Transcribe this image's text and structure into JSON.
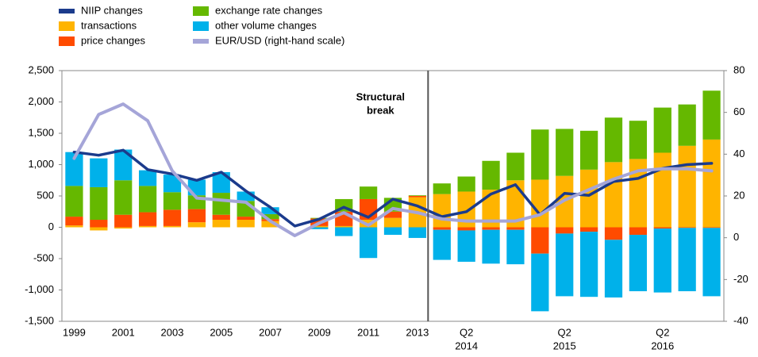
{
  "chart_data": {
    "type": "bar",
    "categories": [
      "1999",
      null,
      "2001",
      null,
      "2003",
      null,
      "2005",
      null,
      "2007",
      null,
      "2009",
      null,
      "2011",
      null,
      "2013",
      null,
      [
        "Q2",
        "2014"
      ],
      null,
      null,
      null,
      [
        "Q2",
        "2015"
      ],
      null,
      null,
      null,
      [
        "Q2",
        "2016"
      ],
      null,
      null
    ],
    "series": [
      {
        "name": "NIIP changes",
        "type": "line",
        "color": "#1b3b8c",
        "values": [
          1200,
          1150,
          1230,
          920,
          850,
          750,
          880,
          580,
          320,
          20,
          130,
          320,
          160,
          450,
          340,
          170,
          250,
          530,
          680,
          200,
          540,
          510,
          730,
          780,
          940,
          1000,
          1020
        ]
      },
      {
        "name": "transactions",
        "color": "#ffb400",
        "values": [
          30,
          -50,
          -20,
          20,
          20,
          80,
          120,
          120,
          100,
          0,
          20,
          20,
          120,
          150,
          480,
          530,
          570,
          600,
          750,
          760,
          820,
          920,
          1040,
          1090,
          1190,
          1300,
          1400
        ]
      },
      {
        "name": "price changes",
        "color": "#ff4b00",
        "values": [
          140,
          120,
          200,
          220,
          260,
          210,
          80,
          50,
          30,
          0,
          120,
          230,
          330,
          100,
          20,
          -40,
          -50,
          -40,
          -40,
          -420,
          -100,
          -70,
          -200,
          -120,
          -20,
          -10,
          -10
        ]
      },
      {
        "name": "exchange rate changes",
        "color": "#65b800",
        "values": [
          490,
          520,
          550,
          420,
          280,
          220,
          350,
          250,
          80,
          0,
          10,
          200,
          200,
          220,
          10,
          170,
          240,
          460,
          440,
          800,
          750,
          620,
          710,
          610,
          720,
          660,
          780
        ]
      },
      {
        "name": "other volume changes",
        "color": "#00b1ea",
        "values": [
          540,
          460,
          490,
          250,
          280,
          250,
          330,
          150,
          110,
          0,
          -30,
          -140,
          -490,
          -120,
          -170,
          -480,
          -500,
          -540,
          -550,
          -920,
          -1000,
          -1040,
          -920,
          -900,
          -1020,
          -1010,
          -1090
        ]
      },
      {
        "name": "EUR/USD (right-hand scale)",
        "type": "line",
        "axis": "y2",
        "color": "#a5a5d8",
        "values": [
          38,
          59,
          64,
          56,
          32,
          19,
          18,
          17,
          8,
          1,
          7,
          12,
          6,
          14,
          12,
          9,
          8,
          8,
          8,
          11,
          18,
          23,
          28,
          32,
          33,
          33,
          32
        ]
      }
    ],
    "annotation": [
      "Structural",
      "break"
    ],
    "ylim": [
      -1500,
      2500
    ],
    "yticks": [
      {
        "value": -1500,
        "label": "-1,500"
      },
      {
        "value": -1000,
        "label": "-1,000"
      },
      -500,
      0,
      500,
      {
        "value": 1000,
        "label": "1,000"
      },
      {
        "value": 1500,
        "label": "1,500"
      },
      {
        "value": 2000,
        "label": "2,000"
      },
      {
        "value": 2500,
        "label": "2,500"
      }
    ],
    "y2lim": [
      -40,
      80
    ],
    "y2ticks": [
      -40,
      -20,
      0,
      20,
      40,
      60,
      80
    ],
    "grid": false,
    "legend": "top-left"
  }
}
